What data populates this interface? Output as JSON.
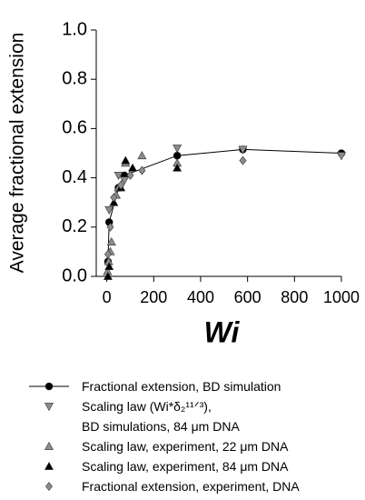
{
  "chart_data": {
    "type": "scatter",
    "x_label": "Wi",
    "y_label": "Average fractional extension",
    "xlim": [
      -45,
      1000
    ],
    "ylim": [
      0,
      1
    ],
    "xticks": [
      0,
      200,
      400,
      600,
      800,
      1000
    ],
    "yticks": [
      {
        "value": 0,
        "label": "0.0"
      },
      0.2,
      0.4,
      0.6,
      0.8,
      {
        "value": 1,
        "label": "1.0"
      }
    ],
    "series": [
      {
        "name": "Fractional extension, BD simulation",
        "color": "#000000",
        "marker": "circle",
        "line": true,
        "x": [
          5,
          10,
          50,
          75,
          300,
          580,
          1000
        ],
        "values": [
          0.06,
          0.22,
          0.36,
          0.41,
          0.49,
          0.515,
          0.5
        ]
      },
      {
        "name": "Scaling law (Wi*δ₂¹¹ᐟ³),\nBD simulations, 84 μm DNA",
        "color": "#8c8c8c",
        "marker": "triangle-down",
        "x": [
          10,
          50,
          75,
          300,
          580,
          1000
        ],
        "values": [
          0.27,
          0.41,
          0.39,
          0.52,
          0.515,
          0.49
        ]
      },
      {
        "name": "Scaling law, experiment, 22 μm DNA",
        "color": "#8c8c8c",
        "marker": "triangle-up",
        "x": [
          3,
          8,
          15,
          20,
          40,
          50,
          80,
          150,
          300
        ],
        "values": [
          0.02,
          0.06,
          0.1,
          0.14,
          0.33,
          0.36,
          0.46,
          0.49,
          0.46
        ]
      },
      {
        "name": "Scaling law, experiment, 84 μm DNA",
        "color": "#000000",
        "marker": "triangle-up",
        "x": [
          5,
          10,
          30,
          60,
          80,
          110,
          300
        ],
        "values": [
          0.0,
          0.04,
          0.3,
          0.36,
          0.47,
          0.44,
          0.44
        ]
      },
      {
        "name": "Fractional extension, experiment, DNA",
        "color": "#8c8c8c",
        "marker": "diamond",
        "x": [
          5,
          15,
          30,
          60,
          100,
          150,
          580
        ],
        "values": [
          0.09,
          0.2,
          0.32,
          0.37,
          0.41,
          0.43,
          0.47
        ]
      }
    ]
  }
}
